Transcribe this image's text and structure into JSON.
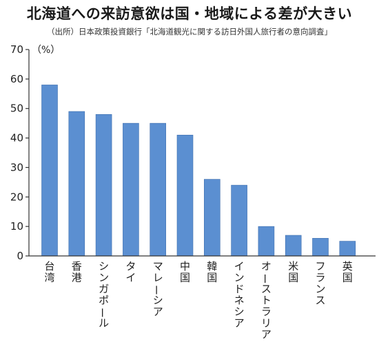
{
  "chart_data": {
    "type": "bar",
    "title": "北海道への来訪意欲は国・地域による差が大きい",
    "subtitle": "（出所）日本政策投資銀行「北海道観光に関する訪日外国人旅行者の意向調査」",
    "unit_label": "（%）",
    "categories": [
      "台湾",
      "香港",
      "シンガポール",
      "タイ",
      "マレーシア",
      "中国",
      "韓国",
      "インドネシア",
      "オーストラリア",
      "米国",
      "フランス",
      "英国"
    ],
    "values": [
      58,
      49,
      48,
      45,
      45,
      41,
      26,
      24,
      10,
      7,
      6,
      5
    ],
    "ylim": [
      0,
      70
    ],
    "yticks": [
      "0",
      "10",
      "20",
      "30",
      "40",
      "50",
      "60",
      "70"
    ],
    "grid": false,
    "legend": "none",
    "bar_color": "#5b8fd1",
    "bar_edge_color": "#3f6fae"
  }
}
